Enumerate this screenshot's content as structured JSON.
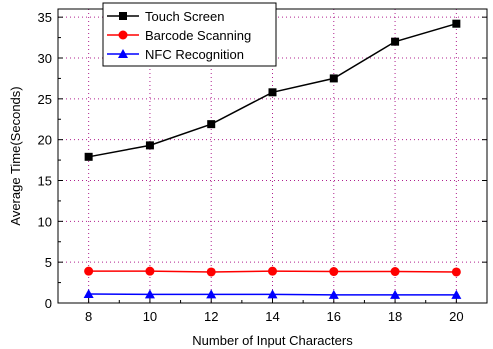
{
  "chart_data": {
    "type": "line",
    "xlabel": "Number of Input Characters",
    "ylabel": "Average Time(Seconds)",
    "x": [
      8,
      10,
      12,
      14,
      16,
      18,
      20
    ],
    "xlim": [
      7,
      21
    ],
    "ylim": [
      0,
      36
    ],
    "xticks": [
      8,
      10,
      12,
      14,
      16,
      18,
      20
    ],
    "yticks": [
      0,
      5,
      10,
      15,
      20,
      25,
      30,
      35
    ],
    "grid": true,
    "legend_position": "top-left",
    "series": [
      {
        "name": "Touch Screen",
        "color": "#000000",
        "marker": "square",
        "values": [
          17.9,
          19.3,
          21.9,
          25.8,
          27.5,
          32.0,
          34.2
        ]
      },
      {
        "name": "Barcode Scanning",
        "color": "#ff0000",
        "marker": "circle",
        "values": [
          3.9,
          3.9,
          3.8,
          3.9,
          3.85,
          3.85,
          3.8
        ]
      },
      {
        "name": "NFC Recognition",
        "color": "#0000ff",
        "marker": "triangle",
        "values": [
          1.1,
          1.05,
          1.05,
          1.05,
          1.0,
          1.0,
          1.0
        ]
      }
    ]
  }
}
